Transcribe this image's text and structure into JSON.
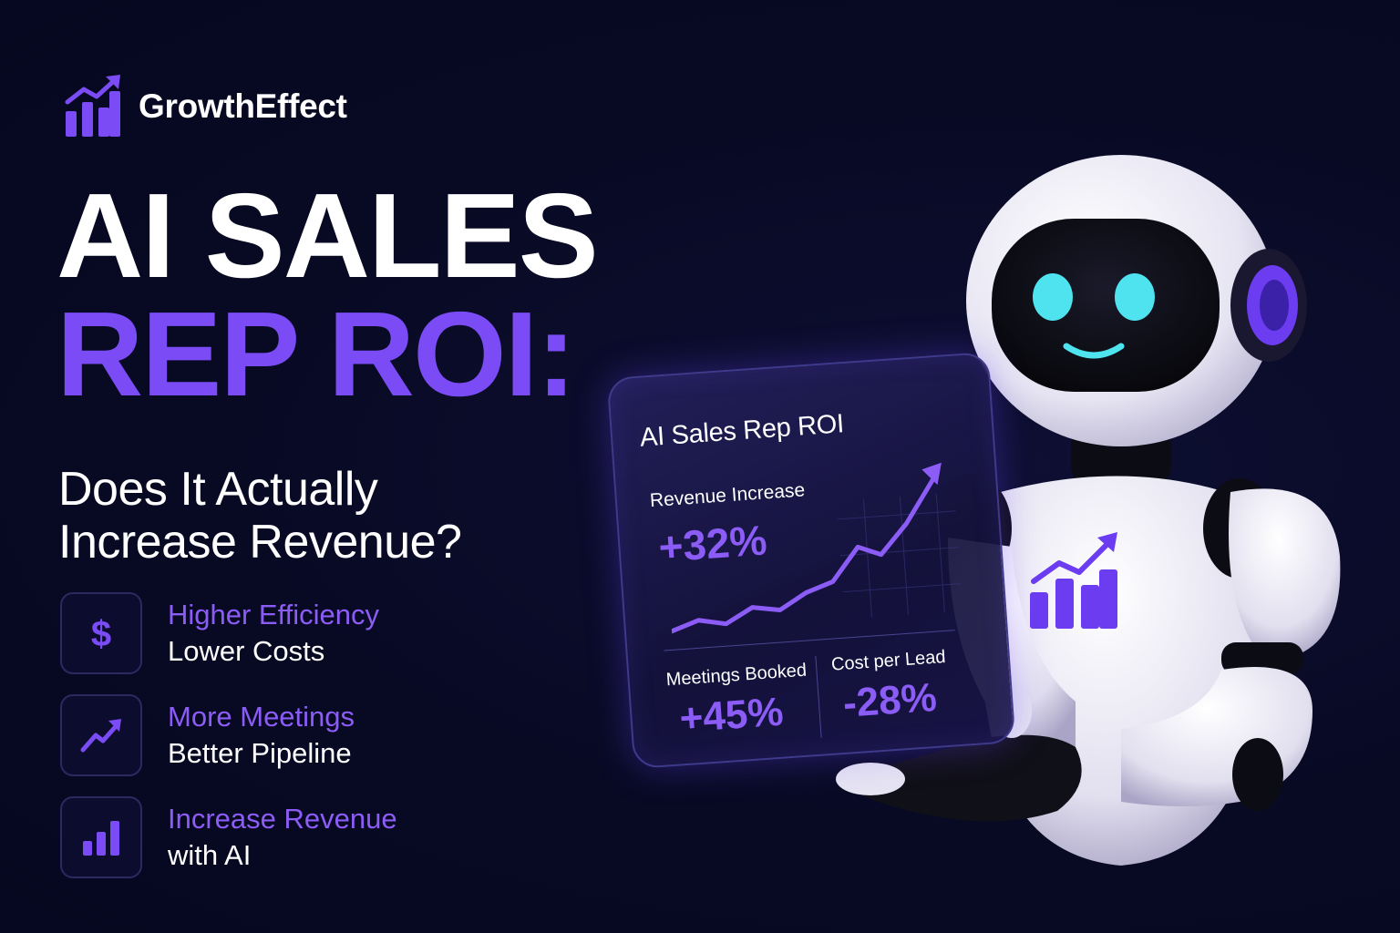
{
  "brand": {
    "name": "GrowthEffect",
    "icon": "growth-chart-icon"
  },
  "headline": {
    "line1": "AI SALES",
    "line2": "REP ROI:"
  },
  "subhead": {
    "line1": "Does It Actually",
    "line2": "Increase Revenue?"
  },
  "features": [
    {
      "icon": "dollar-icon",
      "title": "Higher Efficiency",
      "subtitle": "Lower Costs"
    },
    {
      "icon": "trend-up-icon",
      "title": "More Meetings",
      "subtitle": "Better Pipeline"
    },
    {
      "icon": "bar-chart-icon",
      "title": "Increase Revenue",
      "subtitle": "with AI"
    }
  ],
  "card": {
    "title": "AI Sales Rep ROI",
    "revenue_label": "Revenue Increase",
    "revenue_value": "+32%",
    "meetings_label": "Meetings Booked",
    "meetings_value": "+45%",
    "cost_label": "Cost per Lead",
    "cost_value": "-28%"
  },
  "colors": {
    "background": "#080a24",
    "accent": "#7b4cf5",
    "accent_light": "#8c5cf6",
    "robot_eyes": "#4fe3f0"
  }
}
